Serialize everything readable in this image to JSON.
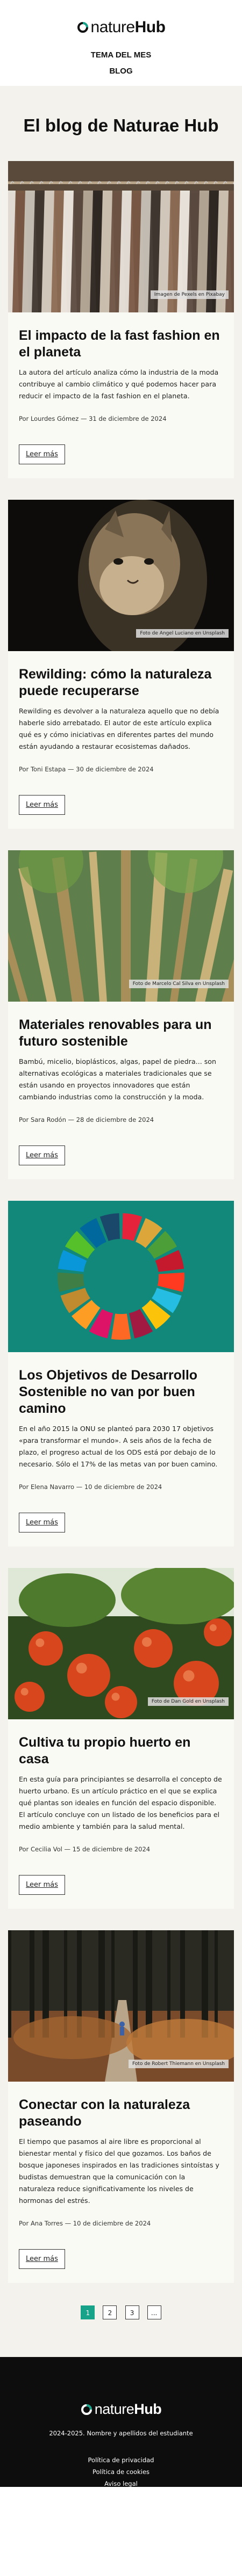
{
  "header": {
    "logo_light": "nature",
    "logo_bold": "Hub",
    "nav": [
      "TEMA DEL MES",
      "BLOG"
    ]
  },
  "main": {
    "title": "El blog de Naturae Hub",
    "read_more_label": "Leer más",
    "posts": [
      {
        "title": "El impacto de la fast fashion en el planeta",
        "excerpt": "La autora del artículo analiza cómo la industria de la moda contribuye al cambio climático y qué podemos hacer para reducir el impacto de la fast fashion en el planeta.",
        "meta": "Por Lourdes Gómez — 31 de diciembre de 2024",
        "credit": "Imagen de Pexels en Pixabay",
        "image": "clothes-rack"
      },
      {
        "title": "Rewilding: cómo la naturaleza puede recuperarse",
        "excerpt": "Rewilding es devolver a la naturaleza aquello que no debía haberle sido arrebatado. El autor de este artículo explica qué es y cómo iniciativas en diferentes partes del mundo están ayudando a restaurar ecosistemas dañados.",
        "meta": "Por Toni Estapa — 30 de diciembre de 2024",
        "credit": "Foto de Angel Luciano en Unsplash",
        "image": "wildcat"
      },
      {
        "title": "Materiales renovables para un futuro sostenible",
        "excerpt": "Bambú, micelio, bioplásticos, algas, papel de piedra... son alternativas ecológicas a materiales tradicionales que se están usando en proyectos innovadores que están cambiando industrias como la construcción y la moda.",
        "meta": "Por Sara Rodón — 28 de diciembre de 2024",
        "credit": "Foto de Marcelo Cal Silva en Unsplash",
        "image": "bamboo"
      },
      {
        "title": "Los Objetivos de Desarrollo Sostenible no van por buen camino",
        "excerpt": "En el año 2015 la ONU se planteó para 2030 17 objetivos «para transformar el mundo». A seis años de la fecha de plazo, el progreso actual de los ODS está por debajo de lo necesario. Sólo el 17% de las metas van por buen camino.",
        "meta": "Por Elena Navarro — 10 de diciembre de 2024",
        "credit": "",
        "image": "sdg-wheel"
      },
      {
        "title": "Cultiva tu propio huerto en casa",
        "excerpt": "En esta guía para principiantes se desarrolla el concepto de huerto urbano. Es un artículo práctico en el que se explica qué plantas son ideales en función del espacio disponible. El artículo concluye con un listado de los beneficios para el medio ambiente y también para la salud mental.",
        "meta": "Por Cecilia Vol — 15 de diciembre de 2024",
        "credit": "Foto de Dan Gold en Unsplash",
        "image": "tomatoes"
      },
      {
        "title": "Conectar con la naturaleza paseando",
        "excerpt": "El tiempo que pasamos al aire libre es proporcional al bienestar mental y físico del que gozamos. Los baños de bosque japoneses inspirados en las tradiciones sintoístas y budistas demuestran que la comunicación con la naturaleza reduce significativamente los niveles de hormonas del estrés.",
        "meta": "Por Ana Torres — 10 de diciembre de 2024",
        "credit": "Foto de Robert Thiemann en Unsplash",
        "image": "forest-path"
      }
    ]
  },
  "pagination": {
    "pages": [
      "1",
      "2",
      "3",
      "..."
    ],
    "current": "1"
  },
  "footer": {
    "logo_light": "nature",
    "logo_bold": "Hub",
    "copyright": "2024-2025. Nombre y apellidos del estudiante",
    "links": [
      "Política de privacidad",
      "Política de cookies",
      "Aviso legal"
    ]
  },
  "colors": {
    "accent": "#17a38a",
    "footer_bg": "#0d0d0d",
    "main_bg": "#f3f2ec"
  }
}
